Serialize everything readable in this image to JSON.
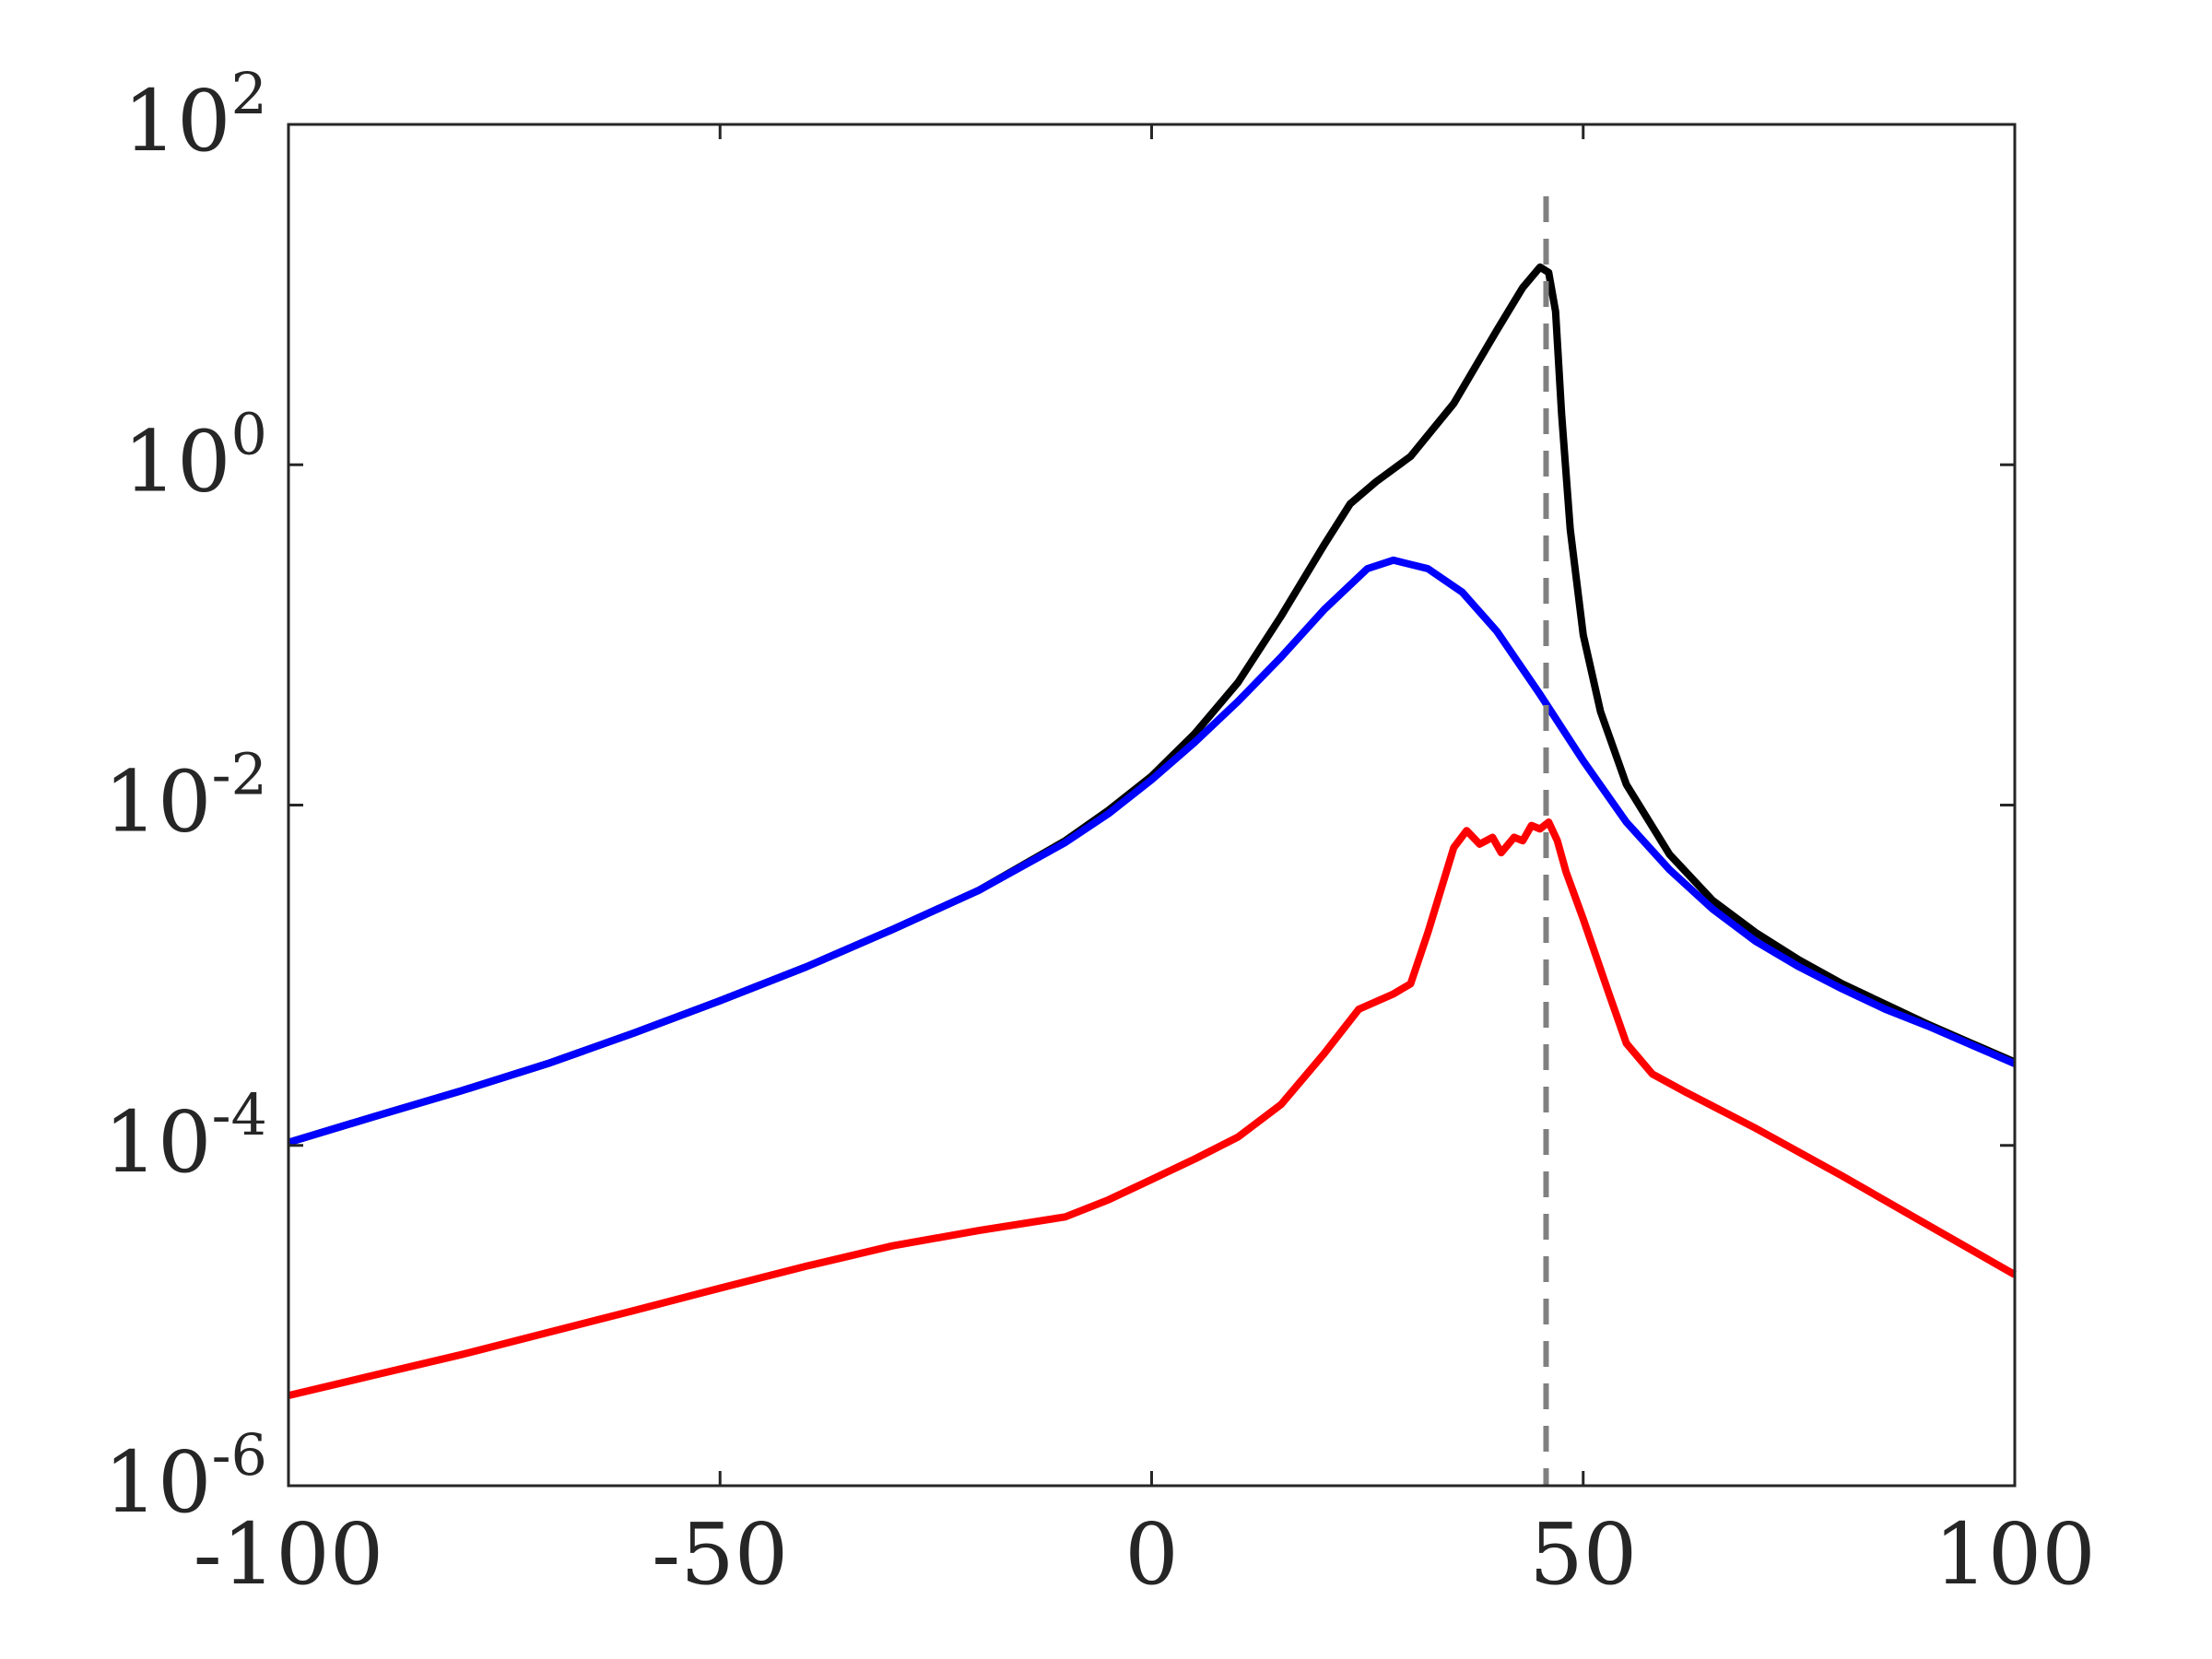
{
  "chart_data": {
    "type": "line",
    "title": "",
    "xlabel": "",
    "ylabel": "",
    "xlim": [
      -100,
      100
    ],
    "ylim": [
      1e-06,
      100
    ],
    "yscale": "log",
    "grid": false,
    "box": true,
    "x_ticks": [
      -100,
      -50,
      0,
      50,
      100
    ],
    "x_tick_labels": [
      "-100",
      "-50",
      "0",
      "50",
      "100"
    ],
    "y_ticks": [
      1e-06,
      0.0001,
      0.01,
      1,
      100
    ],
    "y_tick_labels": [
      {
        "base": "10",
        "exp": "-6"
      },
      {
        "base": "10",
        "exp": "-4"
      },
      {
        "base": "10",
        "exp": "-2"
      },
      {
        "base": "10",
        "exp": "0"
      },
      {
        "base": "10",
        "exp": "2"
      }
    ],
    "reference_lines": [
      {
        "orientation": "vertical",
        "x": 45.7,
        "style": "dashed",
        "color": "#808080"
      }
    ],
    "series": [
      {
        "color": "#000000",
        "points": [
          [
            -100,
            0.000104
          ],
          [
            -90,
            0.000148
          ],
          [
            -80,
            0.000209
          ],
          [
            -70,
            0.000302
          ],
          [
            -60,
            0.000457
          ],
          [
            -50,
            0.000708
          ],
          [
            -40,
            0.00112
          ],
          [
            -30,
            0.00186
          ],
          [
            -20,
            0.00316
          ],
          [
            -10,
            0.00617
          ],
          [
            -5,
            0.00933
          ],
          [
            0,
            0.0148
          ],
          [
            5,
            0.0263
          ],
          [
            10,
            0.0525
          ],
          [
            15,
            0.129
          ],
          [
            20,
            0.339
          ],
          [
            23,
            0.589
          ],
          [
            26,
            0.794
          ],
          [
            30,
            1.12
          ],
          [
            35,
            2.29
          ],
          [
            40,
            6.17
          ],
          [
            43,
            11.0
          ],
          [
            45,
            14.5
          ],
          [
            46,
            13.5
          ],
          [
            46.8,
            7.94
          ],
          [
            47.5,
            2.0
          ],
          [
            48.5,
            0.417
          ],
          [
            50,
            0.1
          ],
          [
            52,
            0.0355
          ],
          [
            55,
            0.0132
          ],
          [
            60,
            0.00513
          ],
          [
            65,
            0.00275
          ],
          [
            70,
            0.00178
          ],
          [
            75,
            0.00123
          ],
          [
            80,
            0.000891
          ],
          [
            85,
            0.000676
          ],
          [
            90,
            0.000513
          ],
          [
            95,
            0.000398
          ],
          [
            100,
            0.000309
          ]
        ]
      },
      {
        "color": "#0000ff",
        "points": [
          [
            -100,
            0.000104
          ],
          [
            -90,
            0.000148
          ],
          [
            -80,
            0.000209
          ],
          [
            -70,
            0.000302
          ],
          [
            -60,
            0.000457
          ],
          [
            -50,
            0.000708
          ],
          [
            -40,
            0.00112
          ],
          [
            -30,
            0.00186
          ],
          [
            -20,
            0.00316
          ],
          [
            -10,
            0.00603
          ],
          [
            -5,
            0.00891
          ],
          [
            0,
            0.0141
          ],
          [
            5,
            0.0234
          ],
          [
            10,
            0.0407
          ],
          [
            15,
            0.0741
          ],
          [
            20,
            0.141
          ],
          [
            25,
            0.245
          ],
          [
            28,
            0.275
          ],
          [
            32,
            0.245
          ],
          [
            36,
            0.178
          ],
          [
            40,
            0.105
          ],
          [
            45,
            0.0447
          ],
          [
            50,
            0.0182
          ],
          [
            55,
            0.00794
          ],
          [
            60,
            0.00417
          ],
          [
            65,
            0.00245
          ],
          [
            70,
            0.00158
          ],
          [
            75,
            0.00112
          ],
          [
            80,
            0.000832
          ],
          [
            85,
            0.000631
          ],
          [
            90,
            0.000501
          ],
          [
            95,
            0.000389
          ],
          [
            100,
            0.000302
          ]
        ]
      },
      {
        "color": "#ff0000",
        "points": [
          [
            -100,
            3.39e-06
          ],
          [
            -90,
            4.47e-06
          ],
          [
            -80,
            5.89e-06
          ],
          [
            -70,
            7.94e-06
          ],
          [
            -60,
            1.07e-05
          ],
          [
            -50,
            1.45e-05
          ],
          [
            -40,
            1.95e-05
          ],
          [
            -30,
            2.57e-05
          ],
          [
            -20,
            3.16e-05
          ],
          [
            -10,
            3.8e-05
          ],
          [
            -5,
            4.79e-05
          ],
          [
            0,
            6.31e-05
          ],
          [
            5,
            8.32e-05
          ],
          [
            10,
            0.000112
          ],
          [
            15,
            0.000174
          ],
          [
            20,
            0.000347
          ],
          [
            24,
            0.000631
          ],
          [
            28,
            0.000776
          ],
          [
            30,
            0.000891
          ],
          [
            32,
            0.00178
          ],
          [
            35,
            0.00562
          ],
          [
            36.5,
            0.00708
          ],
          [
            38,
            0.00589
          ],
          [
            39.5,
            0.00646
          ],
          [
            40.5,
            0.00525
          ],
          [
            42,
            0.00646
          ],
          [
            43,
            0.00617
          ],
          [
            44,
            0.00759
          ],
          [
            45,
            0.00724
          ],
          [
            46,
            0.00794
          ],
          [
            47,
            0.00617
          ],
          [
            48,
            0.00407
          ],
          [
            50,
            0.00214
          ],
          [
            53,
            0.000776
          ],
          [
            55,
            0.000398
          ],
          [
            58,
            0.000263
          ],
          [
            62,
            0.000204
          ],
          [
            70,
            0.000126
          ],
          [
            80,
            6.61e-05
          ],
          [
            90,
            3.39e-05
          ],
          [
            100,
            1.74e-05
          ]
        ]
      }
    ]
  }
}
